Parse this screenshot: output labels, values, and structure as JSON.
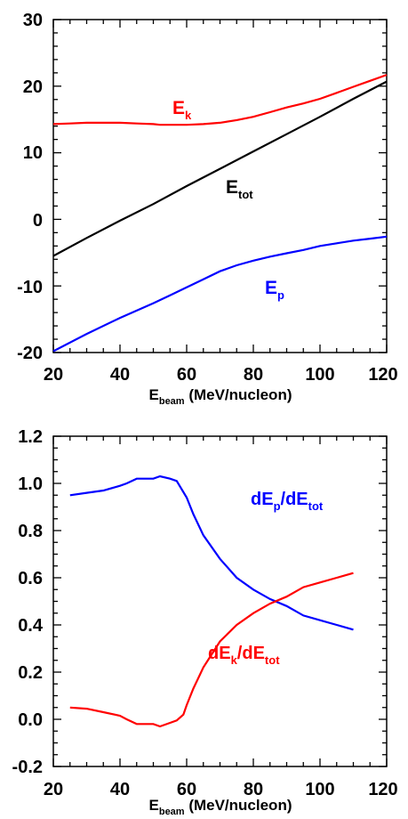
{
  "chart_data": [
    {
      "type": "line",
      "xlim": [
        20,
        120
      ],
      "ylim": [
        -20,
        30
      ],
      "x_ticks": [
        "20",
        "40",
        "60",
        "80",
        "100",
        "120"
      ],
      "y_ticks": [
        "-20",
        "-10",
        "0",
        "10",
        "20",
        "30"
      ],
      "xlabel_main": "E",
      "xlabel_sub": "beam",
      "xlabel_rest": " (MeV/nucleon)",
      "grid": false,
      "series": [
        {
          "label_main": "E",
          "label_sub": "k",
          "color": "#ff0000",
          "x": [
            20,
            25,
            30,
            35,
            40,
            45,
            50,
            52,
            55,
            60,
            65,
            70,
            75,
            80,
            85,
            90,
            95,
            100,
            105,
            110,
            115,
            120
          ],
          "y": [
            14.3,
            14.4,
            14.5,
            14.5,
            14.5,
            14.4,
            14.3,
            14.2,
            14.2,
            14.2,
            14.3,
            14.5,
            14.9,
            15.4,
            16.1,
            16.8,
            17.4,
            18.1,
            19.0,
            19.9,
            20.8,
            21.7
          ]
        },
        {
          "label_main": "E",
          "label_sub": "tot",
          "color": "#000000",
          "x": [
            20,
            30,
            40,
            50,
            60,
            70,
            80,
            90,
            100,
            110,
            120
          ],
          "y": [
            -5.5,
            -2.8,
            -0.2,
            2.3,
            5.0,
            7.6,
            10.2,
            12.8,
            15.4,
            18.1,
            20.7
          ]
        },
        {
          "label_main": "E",
          "label_sub": "p",
          "color": "#0000ff",
          "x": [
            20,
            30,
            40,
            50,
            55,
            60,
            65,
            70,
            75,
            80,
            85,
            90,
            95,
            100,
            105,
            110,
            115,
            120
          ],
          "y": [
            -19.8,
            -17.2,
            -14.8,
            -12.6,
            -11.4,
            -10.2,
            -9.0,
            -7.8,
            -6.9,
            -6.2,
            -5.6,
            -5.1,
            -4.6,
            -4.0,
            -3.6,
            -3.2,
            -2.9,
            -2.6
          ]
        }
      ]
    },
    {
      "type": "line",
      "xlim": [
        20,
        120
      ],
      "ylim": [
        -0.2,
        1.2
      ],
      "x_ticks": [
        "20",
        "40",
        "60",
        "80",
        "100",
        "120"
      ],
      "y_ticks": [
        "-0.2",
        "0.0",
        "0.2",
        "0.4",
        "0.6",
        "0.8",
        "1.0",
        "1.2"
      ],
      "xlabel_main": "E",
      "xlabel_sub": "beam",
      "xlabel_rest": " (MeV/nucleon)",
      "grid": false,
      "series": [
        {
          "label_a": "dE",
          "label_a_sub": "p",
          "label_b": "/dE",
          "label_b_sub": "tot",
          "color": "#0000ff",
          "x": [
            25,
            30,
            35,
            40,
            42,
            45,
            50,
            52,
            55,
            57,
            60,
            62,
            65,
            70,
            75,
            80,
            85,
            90,
            95,
            100,
            105,
            110
          ],
          "y": [
            0.95,
            0.96,
            0.97,
            0.99,
            1.0,
            1.02,
            1.02,
            1.03,
            1.02,
            1.01,
            0.94,
            0.87,
            0.78,
            0.68,
            0.6,
            0.55,
            0.51,
            0.48,
            0.44,
            0.42,
            0.4,
            0.38
          ]
        },
        {
          "label_a": "dE",
          "label_a_sub": "k",
          "label_b": "/dE",
          "label_b_sub": "tot",
          "color": "#ff0000",
          "x": [
            25,
            30,
            35,
            40,
            42,
            45,
            50,
            52,
            55,
            57,
            59,
            60,
            62,
            65,
            70,
            75,
            80,
            85,
            90,
            95,
            100,
            105,
            110
          ],
          "y": [
            0.05,
            0.045,
            0.03,
            0.015,
            0.0,
            -0.02,
            -0.02,
            -0.03,
            -0.015,
            -0.005,
            0.02,
            0.06,
            0.13,
            0.22,
            0.33,
            0.4,
            0.45,
            0.49,
            0.52,
            0.56,
            0.58,
            0.6,
            0.62
          ]
        }
      ]
    }
  ]
}
